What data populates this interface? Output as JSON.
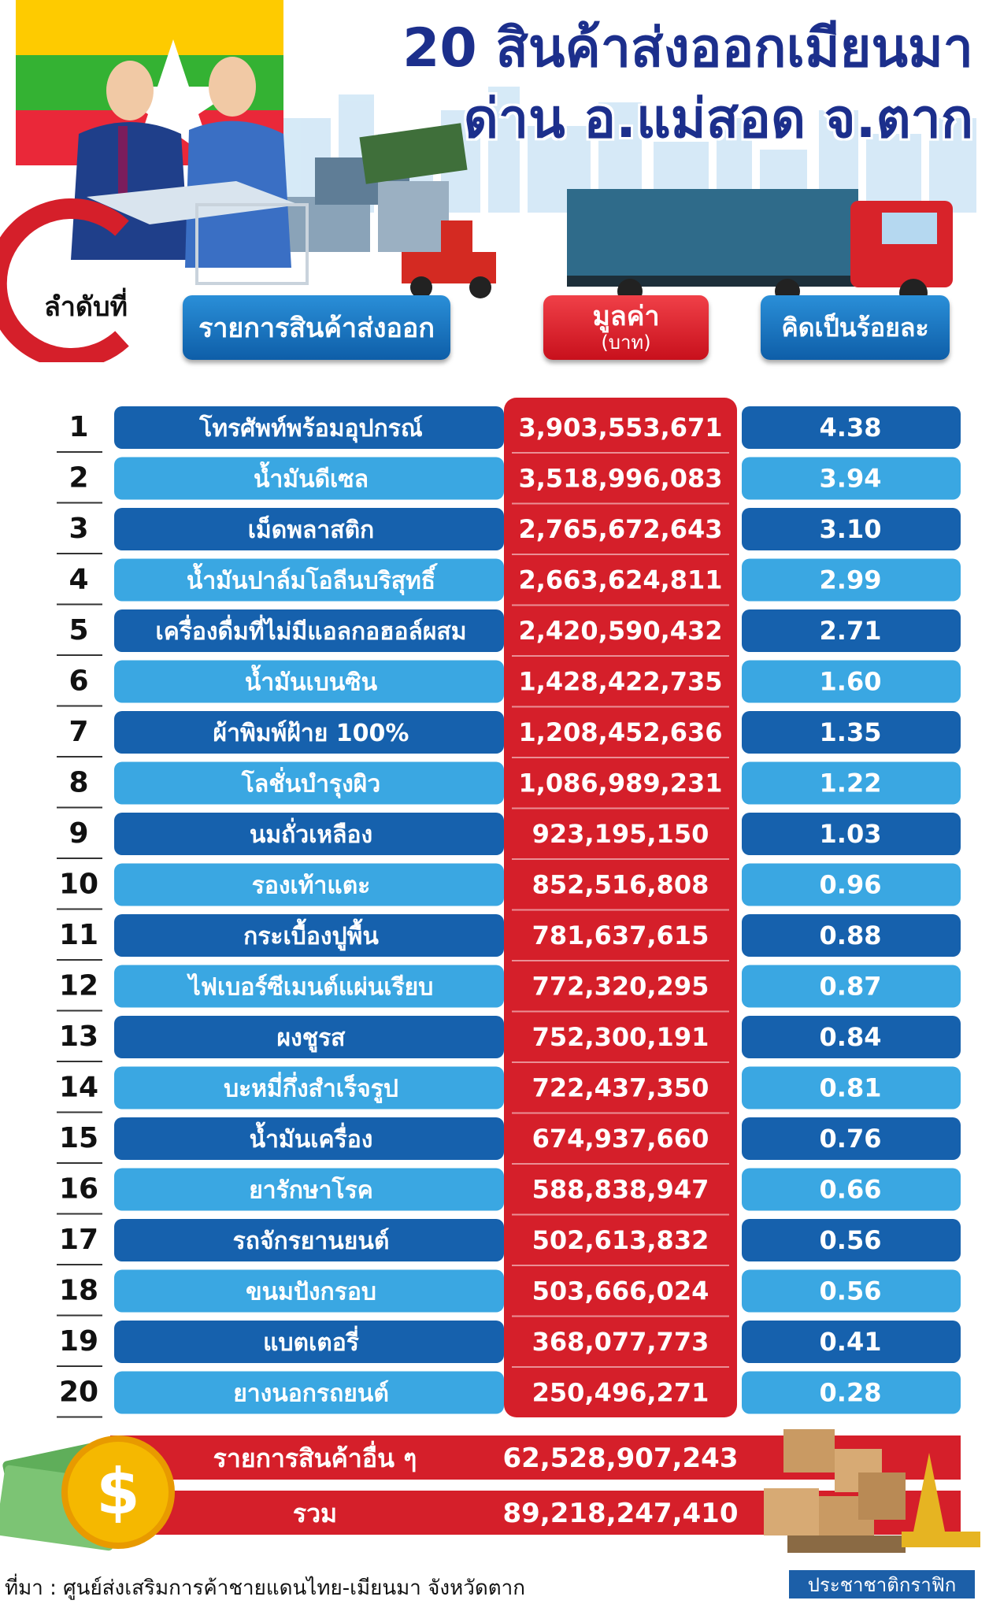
{
  "chart_data": {
    "type": "table",
    "title": "20 สินค้าส่งออกเมียนมา",
    "subtitle": "ด่าน อ.แม่สอด จ.ตาก",
    "columns": {
      "rank": "ลำดับที่",
      "item": "รายการสินค้าส่งออก",
      "value": "มูลค่า",
      "value_unit": "(บาท)",
      "percent": "คิดเป็นร้อยละ"
    },
    "rows": [
      {
        "rank": "1",
        "item": "โทรศัพท์พร้อมอุปกรณ์",
        "value": "3,903,553,671",
        "percent": "4.38"
      },
      {
        "rank": "2",
        "item": "น้ำมันดีเซล",
        "value": "3,518,996,083",
        "percent": "3.94"
      },
      {
        "rank": "3",
        "item": "เม็ดพลาสติก",
        "value": "2,765,672,643",
        "percent": "3.10"
      },
      {
        "rank": "4",
        "item": "น้ำมันปาล์มโอลีนบริสุทธิ์",
        "value": "2,663,624,811",
        "percent": "2.99"
      },
      {
        "rank": "5",
        "item": "เครื่องดื่มที่ไม่มีแอลกอฮอล์ผสม",
        "value": "2,420,590,432",
        "percent": "2.71"
      },
      {
        "rank": "6",
        "item": "น้ำมันเบนซิน",
        "value": "1,428,422,735",
        "percent": "1.60"
      },
      {
        "rank": "7",
        "item": "ผ้าพิมพ์ฝ้าย 100%",
        "value": "1,208,452,636",
        "percent": "1.35"
      },
      {
        "rank": "8",
        "item": "โลชั่นบำรุงผิว",
        "value": "1,086,989,231",
        "percent": "1.22"
      },
      {
        "rank": "9",
        "item": "นมถั่วเหลือง",
        "value": "923,195,150",
        "percent": "1.03"
      },
      {
        "rank": "10",
        "item": "รองเท้าแตะ",
        "value": "852,516,808",
        "percent": "0.96"
      },
      {
        "rank": "11",
        "item": "กระเบื้องปูพื้น",
        "value": "781,637,615",
        "percent": "0.88"
      },
      {
        "rank": "12",
        "item": "ไฟเบอร์ซีเมนต์แผ่นเรียบ",
        "value": "772,320,295",
        "percent": "0.87"
      },
      {
        "rank": "13",
        "item": "ผงชูรส",
        "value": "752,300,191",
        "percent": "0.84"
      },
      {
        "rank": "14",
        "item": "บะหมี่กึ่งสำเร็จรูป",
        "value": "722,437,350",
        "percent": "0.81"
      },
      {
        "rank": "15",
        "item": "น้ำมันเครื่อง",
        "value": "674,937,660",
        "percent": "0.76"
      },
      {
        "rank": "16",
        "item": "ยารักษาโรค",
        "value": "588,838,947",
        "percent": "0.66"
      },
      {
        "rank": "17",
        "item": "รถจักรยานยนต์",
        "value": "502,613,832",
        "percent": "0.56"
      },
      {
        "rank": "18",
        "item": "ขนมปังกรอบ",
        "value": "503,666,024",
        "percent": "0.56"
      },
      {
        "rank": "19",
        "item": "แบตเตอรี่",
        "value": "368,077,773",
        "percent": "0.41"
      },
      {
        "rank": "20",
        "item": "ยางนอกรถยนต์",
        "value": "250,496,271",
        "percent": "0.28"
      }
    ],
    "other": {
      "item": "รายการสินค้าอื่น ๆ",
      "value": "62,528,907,243"
    },
    "total": {
      "item": "รวม",
      "value": "89,218,247,410"
    }
  },
  "source": "ที่มา : ศูนย์ส่งเสริมการค้าชายแดนไทย-เมียนมา จังหวัดตาก",
  "brand": "ประชาชาติกราฟิก",
  "colors": {
    "dark_blue": "#1661ad",
    "light_blue": "#3aa7e2",
    "red": "#d51f2a",
    "title_blue": "#1c2f8c"
  }
}
